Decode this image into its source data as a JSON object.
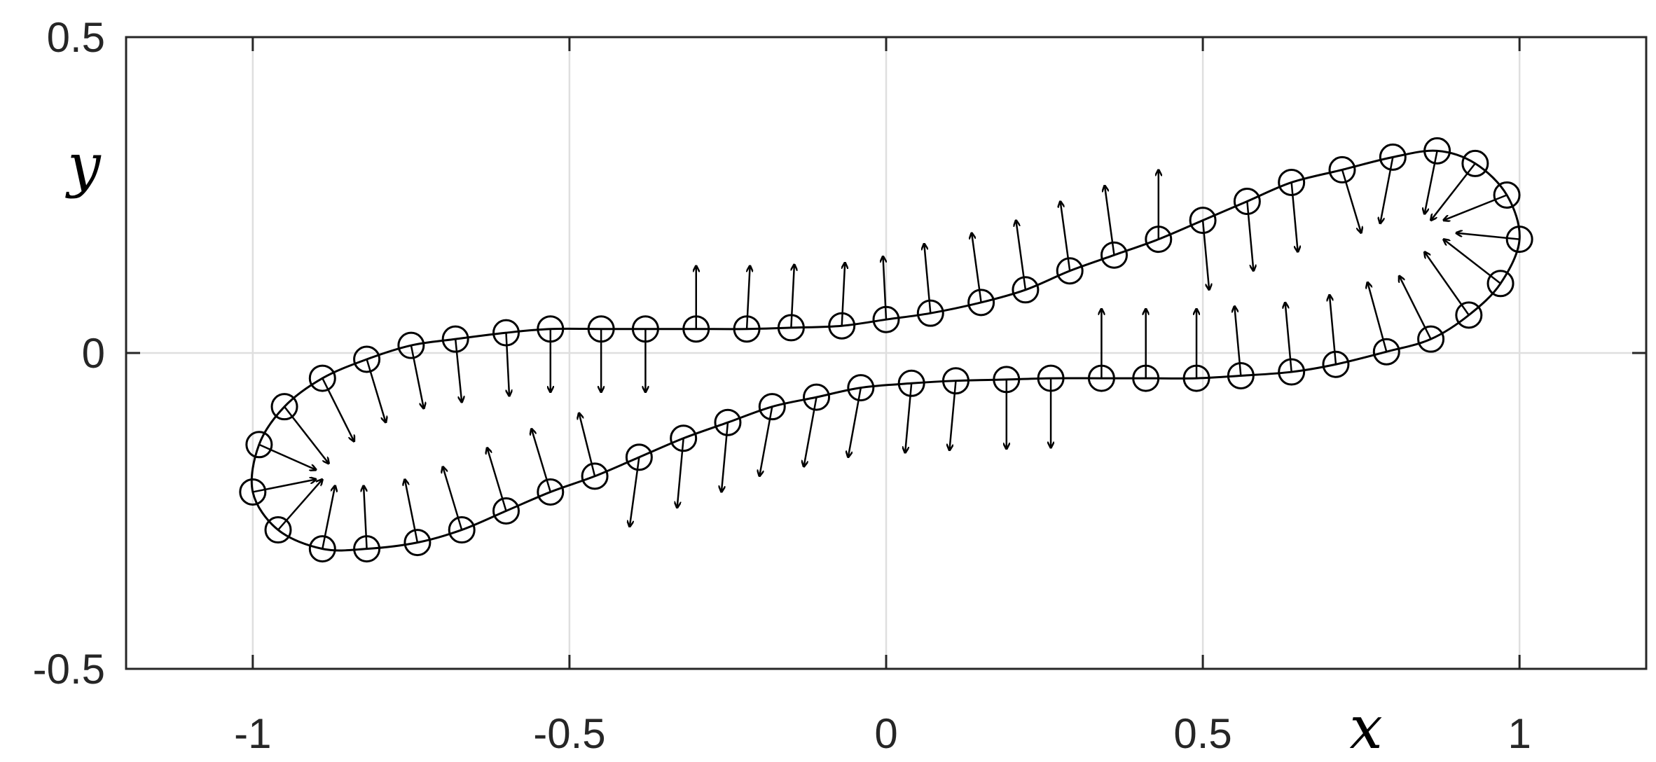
{
  "chart_data": {
    "type": "scatter",
    "title": "",
    "xlabel": "x",
    "ylabel": "y",
    "xlim": [
      -1.2,
      1.2
    ],
    "ylim": [
      -0.5,
      0.5
    ],
    "xticks": [
      -1,
      -0.5,
      0,
      0.5,
      1
    ],
    "xtick_labels": [
      "-1",
      "-0.5",
      "0",
      "0.5",
      "1"
    ],
    "yticks": [
      -0.5,
      0,
      0.5
    ],
    "ytick_labels": [
      "-0.5",
      "0",
      "0.5"
    ],
    "grid": true,
    "legend": false,
    "series": [
      {
        "marker": "open-circle",
        "curve": "closed-smooth",
        "x": [
          1.0,
          0.98,
          0.93,
          0.87,
          0.8,
          0.72,
          0.64,
          0.57,
          0.5,
          0.43,
          0.36,
          0.29,
          0.22,
          0.15,
          0.07,
          0.0,
          -0.07,
          -0.15,
          -0.22,
          -0.3,
          -0.38,
          -0.45,
          -0.53,
          -0.6,
          -0.68,
          -0.75,
          -0.82,
          -0.89,
          -0.95,
          -0.99,
          -1.0,
          -0.96,
          -0.89,
          -0.82,
          -0.74,
          -0.67,
          -0.6,
          -0.53,
          -0.46,
          -0.39,
          -0.32,
          -0.25,
          -0.18,
          -0.11,
          -0.04,
          0.04,
          0.11,
          0.19,
          0.26,
          0.34,
          0.41,
          0.49,
          0.56,
          0.64,
          0.71,
          0.79,
          0.86,
          0.92,
          0.97
        ],
        "y": [
          0.18,
          0.25,
          0.3,
          0.32,
          0.31,
          0.29,
          0.27,
          0.24,
          0.21,
          0.18,
          0.155,
          0.13,
          0.1,
          0.08,
          0.063,
          0.053,
          0.043,
          0.04,
          0.038,
          0.038,
          0.038,
          0.038,
          0.038,
          0.032,
          0.022,
          0.012,
          -0.01,
          -0.04,
          -0.085,
          -0.145,
          -0.22,
          -0.28,
          -0.31,
          -0.31,
          -0.3,
          -0.28,
          -0.25,
          -0.22,
          -0.195,
          -0.165,
          -0.135,
          -0.11,
          -0.085,
          -0.07,
          -0.055,
          -0.048,
          -0.044,
          -0.042,
          -0.04,
          -0.04,
          -0.04,
          -0.04,
          -0.036,
          -0.03,
          -0.018,
          0.002,
          0.022,
          0.06,
          0.11
        ]
      }
    ],
    "arrows": {
      "description": "arrow from each marker point, components in data units",
      "dx": [
        -0.1,
        -0.1,
        -0.07,
        -0.02,
        -0.02,
        0.03,
        0.01,
        0.01,
        0.01,
        0.0,
        -0.015,
        -0.015,
        -0.015,
        -0.015,
        -0.01,
        -0.005,
        0.005,
        0.005,
        0.005,
        0.0,
        0.0,
        0.0,
        0.0,
        0.005,
        0.01,
        0.02,
        0.03,
        0.05,
        0.07,
        0.09,
        0.1,
        0.07,
        0.02,
        -0.005,
        -0.02,
        -0.03,
        -0.03,
        -0.03,
        -0.025,
        -0.015,
        -0.01,
        -0.01,
        -0.02,
        -0.02,
        -0.02,
        -0.01,
        -0.01,
        0.0,
        0.0,
        0.0,
        0.0,
        0.0,
        -0.01,
        -0.01,
        -0.01,
        -0.03,
        -0.05,
        -0.07,
        -0.09
      ],
      "dy": [
        0.01,
        -0.04,
        -0.09,
        -0.1,
        -0.105,
        -0.1,
        -0.11,
        -0.11,
        -0.11,
        0.11,
        0.11,
        0.11,
        0.11,
        0.11,
        0.11,
        0.1,
        0.1,
        0.1,
        0.1,
        0.1,
        -0.1,
        -0.1,
        -0.1,
        -0.1,
        -0.1,
        -0.1,
        -0.1,
        -0.1,
        -0.09,
        -0.04,
        0.02,
        0.08,
        0.1,
        0.1,
        0.1,
        0.1,
        0.1,
        0.1,
        0.1,
        -0.11,
        -0.11,
        -0.11,
        -0.11,
        -0.11,
        -0.11,
        -0.11,
        -0.11,
        -0.11,
        -0.11,
        0.11,
        0.11,
        0.11,
        0.11,
        0.11,
        0.11,
        0.11,
        0.1,
        0.1,
        0.07
      ]
    },
    "colors": {
      "line": "#000000",
      "grid": "#dfdfdf",
      "axes": "#262626",
      "background": "#ffffff"
    }
  }
}
